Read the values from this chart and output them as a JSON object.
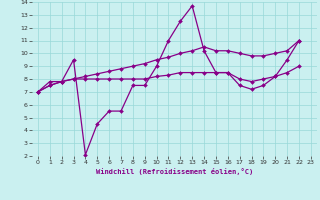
{
  "xlabel": "Windchill (Refroidissement éolien,°C)",
  "xlim": [
    -0.5,
    23.5
  ],
  "ylim": [
    2,
    14
  ],
  "x_ticks": [
    0,
    1,
    2,
    3,
    4,
    5,
    6,
    7,
    8,
    9,
    10,
    11,
    12,
    13,
    14,
    15,
    16,
    17,
    18,
    19,
    20,
    21,
    22,
    23
  ],
  "y_ticks": [
    2,
    3,
    4,
    5,
    6,
    7,
    8,
    9,
    10,
    11,
    12,
    13,
    14
  ],
  "bg_color": "#caf0f0",
  "grid_color": "#99d8d8",
  "line_color": "#880088",
  "line1_x": [
    0,
    1,
    2,
    3,
    4,
    5,
    6,
    7,
    8,
    9,
    10,
    11,
    12,
    13,
    14,
    15,
    16,
    17,
    18,
    19,
    20,
    21,
    22
  ],
  "line1_y": [
    7.0,
    7.8,
    7.8,
    9.5,
    2.1,
    4.5,
    5.5,
    5.5,
    7.5,
    7.5,
    9.0,
    11.0,
    12.5,
    13.7,
    10.2,
    8.5,
    8.5,
    7.5,
    7.2,
    7.5,
    8.2,
    9.5,
    11.0
  ],
  "line2_x": [
    0,
    1,
    2,
    3,
    4,
    5,
    6,
    7,
    8,
    9,
    10,
    11,
    12,
    13,
    14,
    15,
    16,
    17,
    18,
    19,
    20,
    21,
    22
  ],
  "line2_y": [
    7.0,
    7.5,
    7.8,
    8.0,
    8.2,
    8.4,
    8.6,
    8.8,
    9.0,
    9.2,
    9.5,
    9.7,
    10.0,
    10.2,
    10.5,
    10.2,
    10.2,
    10.0,
    9.8,
    9.8,
    10.0,
    10.2,
    11.0
  ],
  "line3_x": [
    0,
    1,
    2,
    3,
    4,
    5,
    6,
    7,
    8,
    9,
    10,
    11,
    12,
    13,
    14,
    15,
    16,
    17,
    18,
    19,
    20,
    21,
    22
  ],
  "line3_y": [
    7.0,
    7.5,
    7.8,
    8.0,
    8.0,
    8.0,
    8.0,
    8.0,
    8.0,
    8.0,
    8.2,
    8.3,
    8.5,
    8.5,
    8.5,
    8.5,
    8.5,
    8.0,
    7.8,
    8.0,
    8.2,
    8.5,
    9.0
  ]
}
